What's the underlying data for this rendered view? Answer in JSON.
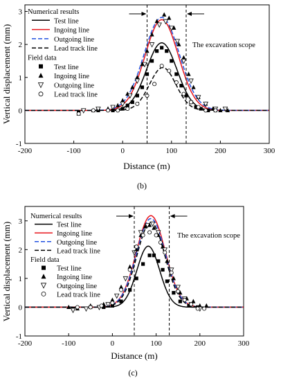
{
  "chart_data": [
    {
      "type": "line",
      "caption": "(b)",
      "xlabel": "Distance (m)",
      "ylabel": "Vertical displacement (mm)",
      "xlim": [
        -200,
        300
      ],
      "ylim": [
        -1,
        3.2
      ],
      "xticks": [
        -200,
        -100,
        0,
        100,
        200,
        300
      ],
      "yticks": [
        -1,
        0,
        1,
        2,
        3
      ],
      "legend_heading_1": "Numerical results",
      "legend_heading_2": "Field data",
      "annotation": "The excavation scope",
      "excavation_bounds": [
        50,
        130
      ],
      "series": [
        {
          "name": "Test line",
          "kind": "line",
          "style": "solid",
          "color": "#000000",
          "peak": 2.05,
          "center": 80,
          "sigma": 31
        },
        {
          "name": "Ingoing line",
          "kind": "line",
          "style": "solid",
          "color": "#e8141b",
          "peak": 2.75,
          "center": 80,
          "sigma": 34
        },
        {
          "name": "Outgoing line",
          "kind": "line",
          "style": "dashed",
          "color": "#2050e0",
          "peak": 2.82,
          "center": 80,
          "sigma": 36
        },
        {
          "name": "Lead track line",
          "kind": "line",
          "style": "dashed",
          "color": "#000000",
          "peak": 1.3,
          "center": 82,
          "sigma": 27
        },
        {
          "name": "Test line",
          "kind": "points",
          "marker": "square",
          "points": [
            [
              -90,
              -0.05
            ],
            [
              -50,
              0
            ],
            [
              -20,
              0
            ],
            [
              0,
              0.05
            ],
            [
              10,
              0.15
            ],
            [
              20,
              0.25
            ],
            [
              30,
              0.45
            ],
            [
              40,
              0.7
            ],
            [
              50,
              1.1
            ],
            [
              60,
              1.5
            ],
            [
              70,
              1.8
            ],
            [
              80,
              1.9
            ],
            [
              90,
              1.8
            ],
            [
              100,
              1.5
            ],
            [
              110,
              1.1
            ],
            [
              120,
              0.75
            ],
            [
              130,
              0.45
            ],
            [
              140,
              0.25
            ],
            [
              150,
              0.1
            ],
            [
              160,
              0.05
            ],
            [
              175,
              0
            ],
            [
              190,
              0
            ]
          ]
        },
        {
          "name": "Ingoing line",
          "kind": "points",
          "marker": "triangle-up",
          "points": [
            [
              -90,
              -0.1
            ],
            [
              -60,
              0
            ],
            [
              -30,
              0.05
            ],
            [
              -10,
              0.15
            ],
            [
              0,
              0.3
            ],
            [
              10,
              0.5
            ],
            [
              20,
              0.7
            ],
            [
              30,
              1.0
            ],
            [
              40,
              1.4
            ],
            [
              50,
              1.8
            ],
            [
              60,
              2.3
            ],
            [
              70,
              2.7
            ],
            [
              85,
              2.9
            ],
            [
              95,
              2.8
            ],
            [
              105,
              2.5
            ],
            [
              115,
              2.0
            ],
            [
              125,
              1.6
            ],
            [
              135,
              1.1
            ],
            [
              145,
              0.7
            ],
            [
              155,
              0.4
            ],
            [
              170,
              0.2
            ],
            [
              185,
              0.05
            ],
            [
              200,
              0
            ],
            [
              215,
              0
            ]
          ]
        },
        {
          "name": "Outgoing line",
          "kind": "points",
          "marker": "triangle-down",
          "points": [
            [
              -80,
              0
            ],
            [
              -50,
              0.05
            ],
            [
              -20,
              0.1
            ],
            [
              0,
              0.2
            ],
            [
              15,
              0.45
            ],
            [
              30,
              0.9
            ],
            [
              45,
              1.4
            ],
            [
              60,
              2.0
            ],
            [
              75,
              2.6
            ],
            [
              88,
              2.7
            ],
            [
              100,
              2.5
            ],
            [
              112,
              2.1
            ],
            [
              125,
              1.5
            ],
            [
              140,
              0.9
            ],
            [
              155,
              0.4
            ],
            [
              170,
              0.2
            ],
            [
              190,
              0.05
            ],
            [
              210,
              0.05
            ]
          ]
        },
        {
          "name": "Lead track line",
          "kind": "points",
          "marker": "circle",
          "points": [
            [
              -90,
              -0.1
            ],
            [
              -60,
              0
            ],
            [
              -30,
              0
            ],
            [
              -10,
              0
            ],
            [
              10,
              0.05
            ],
            [
              30,
              0.2
            ],
            [
              50,
              0.45
            ],
            [
              65,
              0.8
            ],
            [
              80,
              1.35
            ],
            [
              95,
              1.2
            ],
            [
              110,
              0.85
            ],
            [
              125,
              0.5
            ],
            [
              140,
              0.25
            ],
            [
              155,
              0.1
            ],
            [
              170,
              0
            ],
            [
              190,
              0
            ]
          ]
        }
      ]
    },
    {
      "type": "line",
      "caption": "(c)",
      "xlabel": "Distance (m)",
      "ylabel": "Vertical displacement (mm)",
      "xlim": [
        -200,
        300
      ],
      "ylim": [
        -1,
        3.5
      ],
      "xticks": [
        -200,
        -100,
        0,
        100,
        200,
        300
      ],
      "yticks": [
        -1,
        0,
        1,
        2,
        3
      ],
      "legend_heading_1": "Numerical results",
      "legend_heading_2": "Field data",
      "annotation": "The excavation scope",
      "excavation_bounds": [
        50,
        130
      ],
      "series": [
        {
          "name": "Test line",
          "kind": "line",
          "style": "solid",
          "color": "#000000",
          "peak": 2.12,
          "center": 82,
          "sigma": 26
        },
        {
          "name": "Ingoing line",
          "kind": "line",
          "style": "solid",
          "color": "#e8141b",
          "peak": 3.18,
          "center": 88,
          "sigma": 33
        },
        {
          "name": "Outgoing line",
          "kind": "line",
          "style": "dashed",
          "color": "#2050e0",
          "peak": 3.08,
          "center": 88,
          "sigma": 33
        },
        {
          "name": "Lead track line",
          "kind": "line",
          "style": "dashed",
          "color": "#000000",
          "peak": 2.95,
          "center": 88,
          "sigma": 32
        },
        {
          "name": "Test line",
          "kind": "points",
          "marker": "square",
          "points": [
            [
              -90,
              -0.05
            ],
            [
              -50,
              0
            ],
            [
              -20,
              0
            ],
            [
              0,
              0.05
            ],
            [
              20,
              0.2
            ],
            [
              40,
              0.6
            ],
            [
              55,
              1.0
            ],
            [
              70,
              1.5
            ],
            [
              85,
              1.8
            ],
            [
              95,
              1.8
            ],
            [
              105,
              1.6
            ],
            [
              115,
              1.3
            ],
            [
              125,
              0.9
            ],
            [
              140,
              0.5
            ],
            [
              155,
              0.2
            ],
            [
              175,
              0.05
            ],
            [
              195,
              0
            ]
          ]
        },
        {
          "name": "Ingoing line",
          "kind": "points",
          "marker": "triangle-up",
          "points": [
            [
              -100,
              0
            ],
            [
              -80,
              -0.05
            ],
            [
              -50,
              0.05
            ],
            [
              -20,
              0.1
            ],
            [
              0,
              0.25
            ],
            [
              20,
              0.7
            ],
            [
              40,
              1.4
            ],
            [
              55,
              2.0
            ],
            [
              65,
              2.5
            ],
            [
              75,
              2.8
            ],
            [
              85,
              2.85
            ],
            [
              95,
              2.75
            ],
            [
              105,
              2.5
            ],
            [
              115,
              2.1
            ],
            [
              125,
              1.6
            ],
            [
              140,
              1.0
            ],
            [
              155,
              0.5
            ],
            [
              170,
              0.3
            ],
            [
              185,
              0.2
            ],
            [
              200,
              0.05
            ],
            [
              215,
              0.05
            ]
          ]
        },
        {
          "name": "Outgoing line",
          "kind": "points",
          "marker": "triangle-down",
          "points": [
            [
              -90,
              -0.1
            ],
            [
              -60,
              -0.05
            ],
            [
              -30,
              0
            ],
            [
              -10,
              0.1
            ],
            [
              10,
              0.4
            ],
            [
              30,
              1.0
            ],
            [
              50,
              1.9
            ],
            [
              65,
              2.6
            ],
            [
              80,
              2.85
            ],
            [
              92,
              2.9
            ],
            [
              105,
              2.6
            ],
            [
              120,
              2.0
            ],
            [
              135,
              1.3
            ],
            [
              150,
              0.7
            ],
            [
              165,
              0.3
            ],
            [
              180,
              0.1
            ],
            [
              200,
              -0.05
            ]
          ]
        },
        {
          "name": "Lead track line",
          "kind": "points",
          "marker": "circle",
          "points": [
            [
              -80,
              0
            ],
            [
              -50,
              0
            ],
            [
              -25,
              0.05
            ],
            [
              0,
              0.15
            ],
            [
              20,
              0.6
            ],
            [
              40,
              1.3
            ],
            [
              55,
              2.1
            ],
            [
              70,
              2.5
            ],
            [
              85,
              2.6
            ],
            [
              100,
              2.5
            ],
            [
              110,
              2.25
            ],
            [
              120,
              1.9
            ],
            [
              135,
              1.2
            ],
            [
              150,
              0.55
            ],
            [
              165,
              0.25
            ],
            [
              180,
              0.1
            ],
            [
              195,
              -0.05
            ],
            [
              210,
              -0.05
            ]
          ]
        }
      ]
    }
  ]
}
